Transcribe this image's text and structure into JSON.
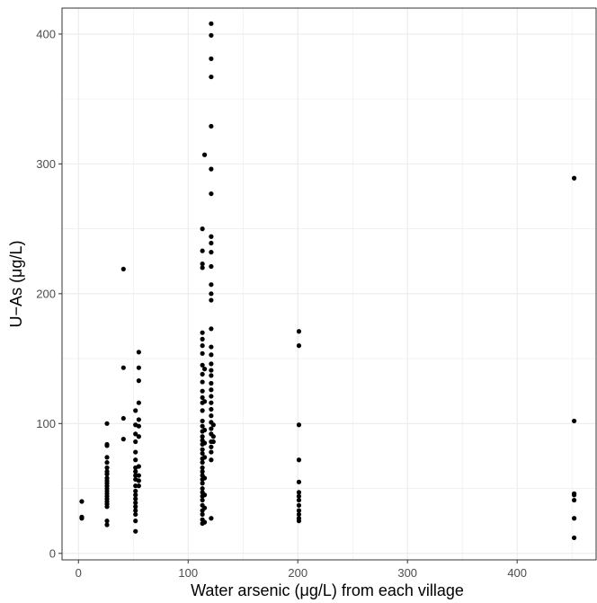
{
  "chart_data": {
    "type": "scatter",
    "title": "",
    "xlabel": "Water arsenic (μg/L) from each village",
    "ylabel": "U−As (μg/L)",
    "xlim": [
      -15,
      472
    ],
    "ylim": [
      -5,
      420
    ],
    "x_ticks": [
      0,
      100,
      200,
      300,
      400
    ],
    "y_ticks": [
      0,
      100,
      200,
      300,
      400
    ],
    "grid": true,
    "point_color": "#000000",
    "grid_color": "#ebebeb",
    "panel_border_color": "#333333",
    "points": [
      {
        "x": 3,
        "y": 40
      },
      {
        "x": 3,
        "y": 28
      },
      {
        "x": 3,
        "y": 27
      },
      {
        "x": 26,
        "y": 100
      },
      {
        "x": 26,
        "y": 84
      },
      {
        "x": 26,
        "y": 83
      },
      {
        "x": 26,
        "y": 74
      },
      {
        "x": 26,
        "y": 70
      },
      {
        "x": 26,
        "y": 66
      },
      {
        "x": 26,
        "y": 63
      },
      {
        "x": 26,
        "y": 61
      },
      {
        "x": 26,
        "y": 58
      },
      {
        "x": 26,
        "y": 56
      },
      {
        "x": 26,
        "y": 54
      },
      {
        "x": 26,
        "y": 52
      },
      {
        "x": 26,
        "y": 50
      },
      {
        "x": 26,
        "y": 48
      },
      {
        "x": 26,
        "y": 46
      },
      {
        "x": 26,
        "y": 44
      },
      {
        "x": 26,
        "y": 42
      },
      {
        "x": 26,
        "y": 40
      },
      {
        "x": 26,
        "y": 38
      },
      {
        "x": 26,
        "y": 36
      },
      {
        "x": 26,
        "y": 25
      },
      {
        "x": 26,
        "y": 22
      },
      {
        "x": 41,
        "y": 219
      },
      {
        "x": 41,
        "y": 143
      },
      {
        "x": 41,
        "y": 104
      },
      {
        "x": 41,
        "y": 88
      },
      {
        "x": 52,
        "y": 110
      },
      {
        "x": 52,
        "y": 99
      },
      {
        "x": 52,
        "y": 92
      },
      {
        "x": 52,
        "y": 86
      },
      {
        "x": 52,
        "y": 78
      },
      {
        "x": 52,
        "y": 72
      },
      {
        "x": 52,
        "y": 66
      },
      {
        "x": 52,
        "y": 63
      },
      {
        "x": 52,
        "y": 60
      },
      {
        "x": 52,
        "y": 57
      },
      {
        "x": 52,
        "y": 52
      },
      {
        "x": 52,
        "y": 48
      },
      {
        "x": 52,
        "y": 45
      },
      {
        "x": 52,
        "y": 42
      },
      {
        "x": 52,
        "y": 39
      },
      {
        "x": 52,
        "y": 36
      },
      {
        "x": 52,
        "y": 33
      },
      {
        "x": 52,
        "y": 30
      },
      {
        "x": 52,
        "y": 25
      },
      {
        "x": 52,
        "y": 17
      },
      {
        "x": 55,
        "y": 155
      },
      {
        "x": 55,
        "y": 143
      },
      {
        "x": 55,
        "y": 133
      },
      {
        "x": 55,
        "y": 116
      },
      {
        "x": 55,
        "y": 103
      },
      {
        "x": 55,
        "y": 98
      },
      {
        "x": 55,
        "y": 90
      },
      {
        "x": 55,
        "y": 67
      },
      {
        "x": 55,
        "y": 60
      },
      {
        "x": 55,
        "y": 56
      },
      {
        "x": 55,
        "y": 52
      },
      {
        "x": 113,
        "y": 250
      },
      {
        "x": 113,
        "y": 233
      },
      {
        "x": 113,
        "y": 223
      },
      {
        "x": 113,
        "y": 220
      },
      {
        "x": 113,
        "y": 170
      },
      {
        "x": 113,
        "y": 165
      },
      {
        "x": 113,
        "y": 160
      },
      {
        "x": 113,
        "y": 154
      },
      {
        "x": 113,
        "y": 145
      },
      {
        "x": 113,
        "y": 138
      },
      {
        "x": 113,
        "y": 132
      },
      {
        "x": 113,
        "y": 125
      },
      {
        "x": 113,
        "y": 120
      },
      {
        "x": 113,
        "y": 116
      },
      {
        "x": 113,
        "y": 110
      },
      {
        "x": 113,
        "y": 102
      },
      {
        "x": 113,
        "y": 98
      },
      {
        "x": 113,
        "y": 94
      },
      {
        "x": 113,
        "y": 90
      },
      {
        "x": 113,
        "y": 87
      },
      {
        "x": 113,
        "y": 84
      },
      {
        "x": 113,
        "y": 80
      },
      {
        "x": 113,
        "y": 77
      },
      {
        "x": 113,
        "y": 73
      },
      {
        "x": 113,
        "y": 70
      },
      {
        "x": 113,
        "y": 66
      },
      {
        "x": 113,
        "y": 63
      },
      {
        "x": 113,
        "y": 60
      },
      {
        "x": 113,
        "y": 57
      },
      {
        "x": 113,
        "y": 54
      },
      {
        "x": 113,
        "y": 50
      },
      {
        "x": 113,
        "y": 47
      },
      {
        "x": 113,
        "y": 44
      },
      {
        "x": 113,
        "y": 41
      },
      {
        "x": 113,
        "y": 37
      },
      {
        "x": 113,
        "y": 33
      },
      {
        "x": 113,
        "y": 30
      },
      {
        "x": 113,
        "y": 26
      },
      {
        "x": 113,
        "y": 23
      },
      {
        "x": 115,
        "y": 307
      },
      {
        "x": 115,
        "y": 142
      },
      {
        "x": 115,
        "y": 117
      },
      {
        "x": 115,
        "y": 95
      },
      {
        "x": 115,
        "y": 85
      },
      {
        "x": 115,
        "y": 74
      },
      {
        "x": 115,
        "y": 58
      },
      {
        "x": 115,
        "y": 45
      },
      {
        "x": 115,
        "y": 35
      },
      {
        "x": 115,
        "y": 24
      },
      {
        "x": 121,
        "y": 408
      },
      {
        "x": 121,
        "y": 399
      },
      {
        "x": 121,
        "y": 381
      },
      {
        "x": 121,
        "y": 367
      },
      {
        "x": 121,
        "y": 329
      },
      {
        "x": 121,
        "y": 296
      },
      {
        "x": 121,
        "y": 277
      },
      {
        "x": 121,
        "y": 244
      },
      {
        "x": 121,
        "y": 239
      },
      {
        "x": 121,
        "y": 232
      },
      {
        "x": 121,
        "y": 221
      },
      {
        "x": 121,
        "y": 207
      },
      {
        "x": 121,
        "y": 200
      },
      {
        "x": 121,
        "y": 195
      },
      {
        "x": 121,
        "y": 173
      },
      {
        "x": 121,
        "y": 159
      },
      {
        "x": 121,
        "y": 153
      },
      {
        "x": 121,
        "y": 146
      },
      {
        "x": 121,
        "y": 141
      },
      {
        "x": 121,
        "y": 137
      },
      {
        "x": 121,
        "y": 131
      },
      {
        "x": 121,
        "y": 126
      },
      {
        "x": 121,
        "y": 121
      },
      {
        "x": 121,
        "y": 116
      },
      {
        "x": 121,
        "y": 111
      },
      {
        "x": 121,
        "y": 106
      },
      {
        "x": 121,
        "y": 101
      },
      {
        "x": 121,
        "y": 96
      },
      {
        "x": 121,
        "y": 92
      },
      {
        "x": 121,
        "y": 86
      },
      {
        "x": 121,
        "y": 82
      },
      {
        "x": 121,
        "y": 78
      },
      {
        "x": 121,
        "y": 72
      },
      {
        "x": 121,
        "y": 27
      },
      {
        "x": 123,
        "y": 99
      },
      {
        "x": 123,
        "y": 90
      },
      {
        "x": 123,
        "y": 86
      },
      {
        "x": 201,
        "y": 171
      },
      {
        "x": 201,
        "y": 160
      },
      {
        "x": 201,
        "y": 99
      },
      {
        "x": 201,
        "y": 72
      },
      {
        "x": 201,
        "y": 55
      },
      {
        "x": 201,
        "y": 47
      },
      {
        "x": 201,
        "y": 44
      },
      {
        "x": 201,
        "y": 41
      },
      {
        "x": 201,
        "y": 37
      },
      {
        "x": 201,
        "y": 33
      },
      {
        "x": 201,
        "y": 30
      },
      {
        "x": 201,
        "y": 27
      },
      {
        "x": 201,
        "y": 25
      },
      {
        "x": 452,
        "y": 289
      },
      {
        "x": 452,
        "y": 102
      },
      {
        "x": 452,
        "y": 46
      },
      {
        "x": 452,
        "y": 45
      },
      {
        "x": 452,
        "y": 41
      },
      {
        "x": 452,
        "y": 27
      },
      {
        "x": 452,
        "y": 12
      }
    ]
  }
}
